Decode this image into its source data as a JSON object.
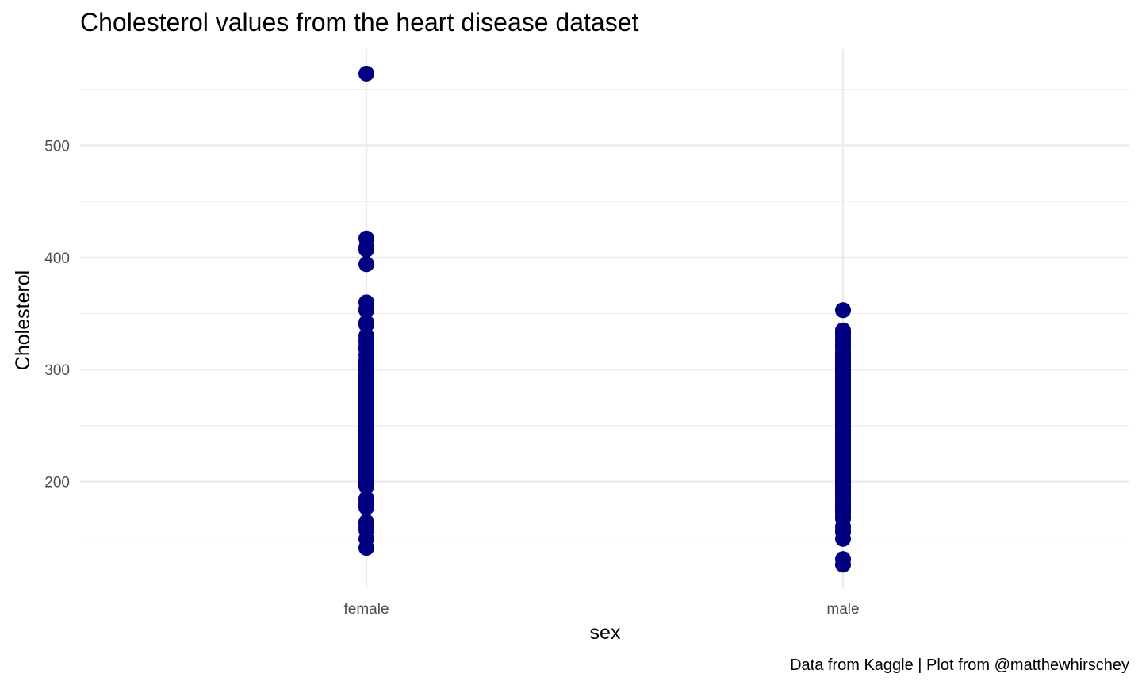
{
  "chart_data": {
    "type": "scatter",
    "title": "Cholesterol values from the heart disease dataset",
    "xlabel": "sex",
    "ylabel": "Cholesterol",
    "caption": "Data from Kaggle | Plot from @matthewhirschey",
    "categories": [
      "female",
      "male"
    ],
    "y_ticks": [
      "200",
      "300",
      "400",
      "500"
    ],
    "ylim": [
      126,
      564
    ],
    "grid": true,
    "point_color": "#000080",
    "series": [
      {
        "category": "female",
        "values": [
          564,
          417,
          409,
          407,
          394,
          360,
          354,
          353,
          342,
          340,
          330,
          327,
          325,
          321,
          319,
          318,
          313,
          308,
          307,
          306,
          305,
          304,
          303,
          302,
          300,
          298,
          295,
          294,
          293,
          291,
          290,
          289,
          288,
          286,
          285,
          282,
          281,
          280,
          278,
          277,
          276,
          275,
          274,
          273,
          271,
          270,
          269,
          268,
          267,
          266,
          265,
          264,
          263,
          262,
          261,
          260,
          259,
          258,
          257,
          256,
          255,
          254,
          253,
          252,
          250,
          249,
          248,
          246,
          245,
          244,
          243,
          242,
          240,
          239,
          237,
          236,
          235,
          234,
          233,
          232,
          230,
          228,
          226,
          225,
          224,
          222,
          221,
          220,
          219,
          218,
          216,
          215,
          214,
          213,
          212,
          211,
          210,
          209,
          208,
          207,
          205,
          204,
          203,
          201,
          199,
          198,
          197,
          196,
          185,
          183,
          180,
          178,
          177,
          164,
          163,
          160,
          157,
          149,
          141
        ]
      },
      {
        "category": "male",
        "values": [
          353,
          335,
          333,
          332,
          330,
          327,
          326,
          325,
          322,
          321,
          319,
          318,
          315,
          313,
          312,
          311,
          309,
          308,
          307,
          306,
          305,
          304,
          303,
          302,
          300,
          299,
          298,
          297,
          295,
          294,
          293,
          292,
          291,
          290,
          289,
          288,
          287,
          286,
          285,
          284,
          283,
          282,
          281,
          280,
          279,
          278,
          277,
          276,
          275,
          274,
          273,
          272,
          271,
          270,
          269,
          268,
          267,
          266,
          265,
          264,
          263,
          262,
          261,
          260,
          259,
          258,
          257,
          256,
          255,
          254,
          253,
          252,
          251,
          250,
          249,
          248,
          247,
          246,
          245,
          244,
          243,
          242,
          241,
          240,
          239,
          238,
          237,
          236,
          235,
          234,
          233,
          232,
          231,
          230,
          229,
          228,
          227,
          226,
          225,
          224,
          223,
          222,
          221,
          220,
          219,
          218,
          217,
          216,
          215,
          214,
          213,
          212,
          211,
          210,
          209,
          208,
          207,
          206,
          205,
          204,
          203,
          202,
          201,
          200,
          199,
          198,
          197,
          196,
          195,
          193,
          192,
          190,
          188,
          186,
          184,
          182,
          180,
          178,
          176,
          175,
          174,
          172,
          169,
          167,
          160,
          157,
          155,
          149,
          131,
          126
        ]
      }
    ]
  }
}
